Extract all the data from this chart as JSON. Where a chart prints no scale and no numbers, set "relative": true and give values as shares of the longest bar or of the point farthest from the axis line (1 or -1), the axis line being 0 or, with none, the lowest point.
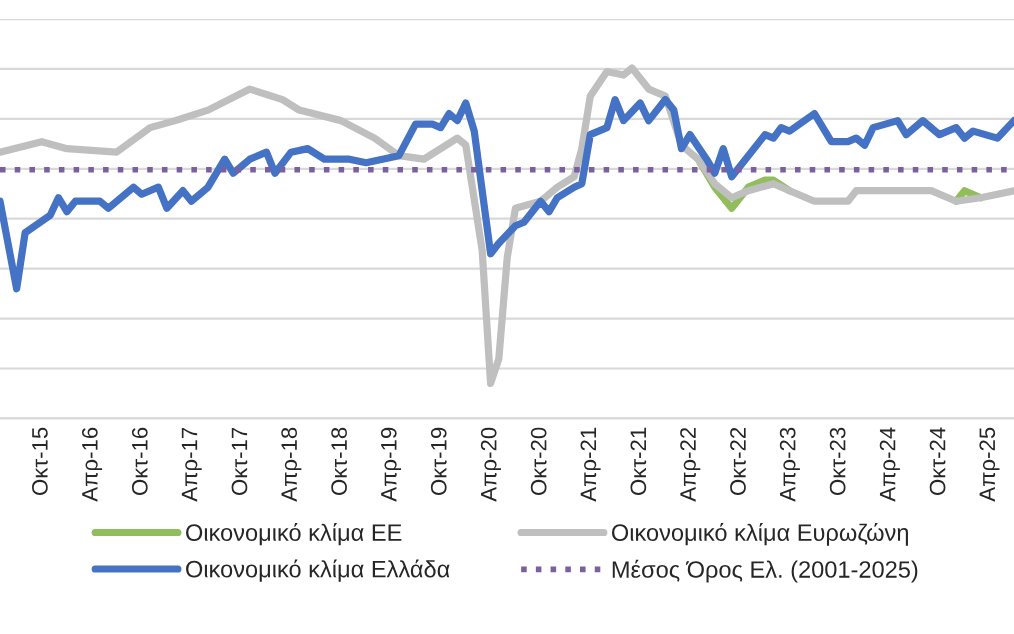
{
  "chart_data": {
    "type": "line",
    "relative": true,
    "grid": "y",
    "legend": "bottom",
    "xlim": [
      "2015-05",
      "2025-07"
    ],
    "xticks": [
      {
        "value": "2015-10",
        "label": "Οκτ-15"
      },
      {
        "value": "2016-04",
        "label": "Απρ-16"
      },
      {
        "value": "2016-10",
        "label": "Οκτ-16"
      },
      {
        "value": "2017-04",
        "label": "Απρ-17"
      },
      {
        "value": "2017-10",
        "label": "Οκτ-17"
      },
      {
        "value": "2018-04",
        "label": "Απρ-18"
      },
      {
        "value": "2018-10",
        "label": "Οκτ-18"
      },
      {
        "value": "2019-04",
        "label": "Απρ-19"
      },
      {
        "value": "2019-10",
        "label": "Οκτ-19"
      },
      {
        "value": "2020-04",
        "label": "Απρ-20"
      },
      {
        "value": "2020-10",
        "label": "Οκτ-20"
      },
      {
        "value": "2021-04",
        "label": "Απρ-21"
      },
      {
        "value": "2021-10",
        "label": "Οκτ-21"
      },
      {
        "value": "2022-04",
        "label": "Απρ-22"
      },
      {
        "value": "2022-10",
        "label": "Οκτ-22"
      },
      {
        "value": "2023-04",
        "label": "Απρ-23"
      },
      {
        "value": "2023-10",
        "label": "Οκτ-23"
      },
      {
        "value": "2024-04",
        "label": "Απρ-24"
      },
      {
        "value": "2024-10",
        "label": "Οκτ-24"
      },
      {
        "value": "2025-04",
        "label": "Απρ-25"
      }
    ],
    "series": [
      {
        "name": "Οικονομικό κλίμα ΕΕ",
        "color": "#92bd5d",
        "x": [
          "2022-05",
          "2022-07",
          "2022-09",
          "2022-11",
          "2023-01",
          "2023-02",
          "2023-04",
          "2024-03",
          "2024-12",
          "2025-01",
          "2025-03"
        ],
        "values": [
          0.74,
          0.66,
          0.6,
          0.66,
          0.68,
          0.68,
          0.65,
          null,
          0.62,
          0.65,
          0.63
        ]
      },
      {
        "name": "Οικονομικό κλίμα Ευρωζώνη",
        "color": "#bfbfbf",
        "x": [
          "2015-05",
          "2015-10",
          "2016-01",
          "2016-07",
          "2016-11",
          "2017-02",
          "2017-06",
          "2017-11",
          "2018-03",
          "2018-05",
          "2018-10",
          "2019-02",
          "2019-05",
          "2019-08",
          "2019-12",
          "2020-01",
          "2020-03",
          "2020-04",
          "2020-05",
          "2020-06",
          "2020-07",
          "2020-10",
          "2020-12",
          "2021-02",
          "2021-03",
          "2021-04",
          "2021-06",
          "2021-08",
          "2021-09",
          "2021-11",
          "2022-01",
          "2022-03",
          "2022-05",
          "2022-07",
          "2022-09",
          "2022-11",
          "2023-02",
          "2023-04",
          "2023-07",
          "2023-11",
          "2023-12",
          "2024-03",
          "2024-09",
          "2024-12",
          "2025-03",
          "2025-07"
        ],
        "values": [
          0.76,
          0.79,
          0.77,
          0.76,
          0.83,
          0.85,
          0.88,
          0.94,
          0.91,
          0.88,
          0.85,
          0.8,
          0.75,
          0.74,
          0.8,
          0.78,
          0.48,
          0.1,
          0.17,
          0.46,
          0.6,
          0.62,
          0.66,
          0.69,
          0.77,
          0.92,
          0.99,
          0.98,
          1.0,
          0.94,
          0.92,
          0.78,
          0.74,
          0.67,
          0.63,
          0.65,
          0.67,
          0.65,
          0.62,
          0.62,
          0.65,
          0.65,
          0.65,
          0.62,
          0.63,
          0.65
        ]
      },
      {
        "name": "Οικονομικό κλίμα Ελλάδα",
        "color": "#4472c4",
        "x": [
          "2015-05",
          "2015-07",
          "2015-08",
          "2015-11",
          "2015-12",
          "2016-01",
          "2016-02",
          "2016-05",
          "2016-06",
          "2016-09",
          "2016-10",
          "2016-12",
          "2017-01",
          "2017-03",
          "2017-04",
          "2017-06",
          "2017-08",
          "2017-09",
          "2017-11",
          "2018-01",
          "2018-02",
          "2018-04",
          "2018-06",
          "2018-08",
          "2018-11",
          "2019-01",
          "2019-05",
          "2019-07",
          "2019-09",
          "2019-10",
          "2019-11",
          "2019-12",
          "2020-01",
          "2020-02",
          "2020-04",
          "2020-05",
          "2020-07",
          "2020-08",
          "2020-10",
          "2020-11",
          "2020-12",
          "2021-02",
          "2021-03",
          "2021-04",
          "2021-06",
          "2021-07",
          "2021-08",
          "2021-10",
          "2021-11",
          "2022-01",
          "2022-02",
          "2022-03",
          "2022-04",
          "2022-06",
          "2022-07",
          "2022-08",
          "2022-09",
          "2022-11",
          "2023-01",
          "2023-02",
          "2023-03",
          "2023-04",
          "2023-07",
          "2023-09",
          "2023-11",
          "2023-12",
          "2024-01",
          "2024-02",
          "2024-05",
          "2024-06",
          "2024-08",
          "2024-10",
          "2024-12",
          "2025-01",
          "2025-02",
          "2025-05",
          "2025-07"
        ],
        "values": [
          0.62,
          0.37,
          0.53,
          0.58,
          0.63,
          0.59,
          0.62,
          0.62,
          0.6,
          0.66,
          0.64,
          0.66,
          0.6,
          0.65,
          0.62,
          0.66,
          0.74,
          0.7,
          0.74,
          0.76,
          0.7,
          0.76,
          0.77,
          0.74,
          0.74,
          0.73,
          0.75,
          0.84,
          0.84,
          0.83,
          0.87,
          0.85,
          0.9,
          0.82,
          0.47,
          0.5,
          0.55,
          0.56,
          0.62,
          0.59,
          0.63,
          0.66,
          0.67,
          0.81,
          0.83,
          0.91,
          0.85,
          0.9,
          0.85,
          0.91,
          0.88,
          0.77,
          0.81,
          0.74,
          0.7,
          0.77,
          0.69,
          0.75,
          0.81,
          0.8,
          0.83,
          0.82,
          0.87,
          0.79,
          0.79,
          0.8,
          0.78,
          0.83,
          0.85,
          0.81,
          0.85,
          0.81,
          0.83,
          0.8,
          0.82,
          0.8,
          0.85
        ]
      }
    ],
    "ref_lines": [
      {
        "axis": "y",
        "value": 0.71,
        "label": "Μέσος Όρος Ελ. (2001-2025)",
        "color": "#7b5f9e",
        "line_style": "dotted"
      }
    ]
  }
}
